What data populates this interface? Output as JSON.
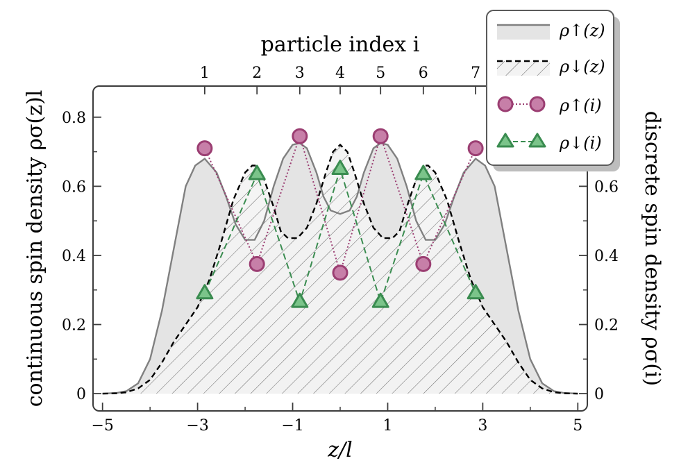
{
  "chart_data": {
    "type": "line",
    "xlabel": "z/l",
    "ylabel_left": "continuous spin density ρσ(z)l",
    "ylabel_right": "discrete spin density ρσ(i)",
    "xlabel_top": "particle index i",
    "xlim": [
      -5.2,
      5.2
    ],
    "ylim": [
      -0.05,
      0.89
    ],
    "x_ticks": [
      -5,
      -3,
      -1,
      1,
      3,
      5
    ],
    "x_tick_labels": [
      "−5",
      "−3",
      "−1",
      "1",
      "3",
      "5"
    ],
    "y_ticks": [
      0,
      0.2,
      0.4,
      0.6,
      0.8
    ],
    "y_tick_labels": [
      "0",
      "0.2",
      "0.4",
      "0.6",
      "0.8"
    ],
    "top_ticks": [
      1,
      2,
      3,
      4,
      5,
      6,
      7
    ],
    "top_tick_labels": [
      "1",
      "2",
      "3",
      "4",
      "5",
      "6",
      "7"
    ],
    "top_tick_positions": [
      -2.85,
      -1.75,
      -0.85,
      0,
      0.85,
      1.75,
      2.85
    ],
    "series": [
      {
        "name": "ρ↑(z)",
        "style": "solid-fill",
        "color": "#808080",
        "fill": "#e4e4e4",
        "x": [
          -5.0,
          -4.7,
          -4.5,
          -4.25,
          -4.0,
          -3.75,
          -3.5,
          -3.25,
          -3.05,
          -2.85,
          -2.6,
          -2.4,
          -2.2,
          -2.0,
          -1.8,
          -1.6,
          -1.4,
          -1.2,
          -1.0,
          -0.85,
          -0.7,
          -0.5,
          -0.35,
          -0.2,
          0.0,
          0.2,
          0.35,
          0.5,
          0.7,
          0.85,
          1.0,
          1.2,
          1.4,
          1.6,
          1.8,
          2.0,
          2.2,
          2.4,
          2.6,
          2.85,
          3.05,
          3.25,
          3.5,
          3.75,
          4.0,
          4.25,
          4.5,
          4.7,
          5.0
        ],
        "y": [
          0.0,
          0.002,
          0.007,
          0.03,
          0.1,
          0.24,
          0.42,
          0.6,
          0.66,
          0.68,
          0.64,
          0.57,
          0.49,
          0.445,
          0.445,
          0.5,
          0.6,
          0.68,
          0.72,
          0.725,
          0.71,
          0.64,
          0.57,
          0.53,
          0.52,
          0.53,
          0.57,
          0.64,
          0.71,
          0.725,
          0.72,
          0.68,
          0.6,
          0.5,
          0.445,
          0.445,
          0.49,
          0.57,
          0.64,
          0.68,
          0.66,
          0.6,
          0.42,
          0.24,
          0.1,
          0.03,
          0.007,
          0.002,
          0.0
        ]
      },
      {
        "name": "ρ↓(z)",
        "style": "dashed-hatch",
        "color": "#000000",
        "x": [
          -5.0,
          -4.7,
          -4.5,
          -4.25,
          -4.0,
          -3.75,
          -3.5,
          -3.25,
          -3.0,
          -2.75,
          -2.5,
          -2.25,
          -2.0,
          -1.85,
          -1.75,
          -1.6,
          -1.4,
          -1.25,
          -1.1,
          -0.9,
          -0.7,
          -0.5,
          -0.3,
          -0.15,
          0.0,
          0.15,
          0.3,
          0.5,
          0.7,
          0.9,
          1.1,
          1.25,
          1.4,
          1.6,
          1.75,
          1.85,
          2.0,
          2.25,
          2.5,
          2.75,
          3.0,
          3.25,
          3.5,
          3.75,
          4.0,
          4.25,
          4.5,
          4.7,
          5.0
        ],
        "y": [
          0.0,
          0.001,
          0.004,
          0.015,
          0.04,
          0.09,
          0.15,
          0.2,
          0.25,
          0.33,
          0.44,
          0.56,
          0.64,
          0.66,
          0.66,
          0.62,
          0.54,
          0.47,
          0.45,
          0.45,
          0.48,
          0.55,
          0.64,
          0.7,
          0.72,
          0.7,
          0.64,
          0.55,
          0.48,
          0.45,
          0.45,
          0.47,
          0.54,
          0.62,
          0.66,
          0.66,
          0.64,
          0.56,
          0.44,
          0.33,
          0.25,
          0.2,
          0.15,
          0.09,
          0.04,
          0.015,
          0.004,
          0.001,
          0.0
        ]
      },
      {
        "name": "ρ↑(i)",
        "style": "dotted-circle",
        "color": "#9b3e72",
        "marker_fill": "#c77fa8",
        "x": [
          -2.85,
          -1.75,
          -0.85,
          0,
          0.85,
          1.75,
          2.85
        ],
        "y": [
          0.71,
          0.375,
          0.745,
          0.35,
          0.745,
          0.375,
          0.71
        ]
      },
      {
        "name": "ρ↓(i)",
        "style": "dashed-triangle",
        "color": "#3a8c50",
        "marker_fill": "#7bc48a",
        "x": [
          -2.85,
          -1.75,
          -0.85,
          0,
          0.85,
          1.75,
          2.85
        ],
        "y": [
          0.29,
          0.635,
          0.265,
          0.65,
          0.265,
          0.635,
          0.29
        ]
      }
    ],
    "legend": {
      "placement": "top-right",
      "entries": [
        "ρ↑(z)",
        "ρ↓(z)",
        "ρ↑(i)",
        "ρ↓(i)"
      ]
    }
  }
}
